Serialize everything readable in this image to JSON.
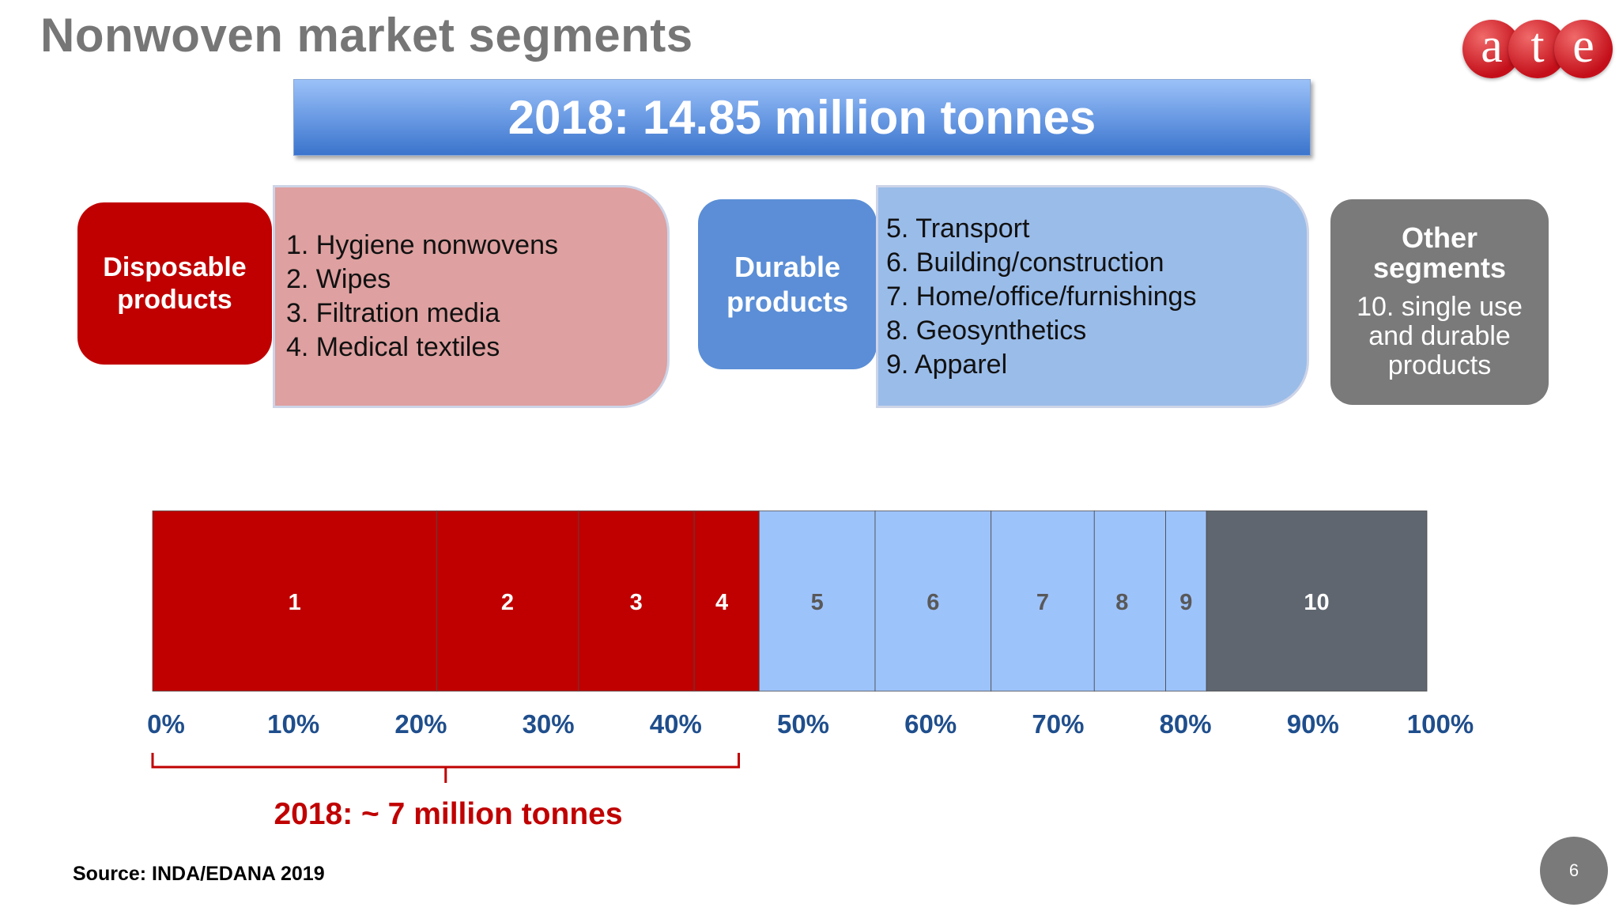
{
  "title": "Nonwoven market segments",
  "banner": "2018: 14.85 million tonnes",
  "logo": {
    "letters": [
      "a",
      "t",
      "e"
    ],
    "color": "#c40f1a"
  },
  "groups": {
    "disposable": {
      "label": "Disposable\nproducts",
      "items": [
        "1. Hygiene nonwovens",
        "2. Wipes",
        "3. Filtration media",
        "4. Medical textiles"
      ]
    },
    "durable": {
      "label": "Durable\nproducts",
      "items": [
        "5. Transport",
        "6. Building/construction",
        "7. Home/office/furnishings",
        "8. Geosynthetics",
        "9. Apparel"
      ]
    },
    "other": {
      "label": "Other\nsegments",
      "description": "10. single use\nand durable\nproducts"
    }
  },
  "chart_data": {
    "type": "bar",
    "orientation": "horizontal-stacked-100",
    "xlim": [
      0,
      100
    ],
    "ticks": [
      "0%",
      "10%",
      "20%",
      "30%",
      "40%",
      "50%",
      "60%",
      "70%",
      "80%",
      "90%",
      "100%"
    ],
    "segments": [
      {
        "label": "1",
        "value": 22.3,
        "color": "#c00000",
        "text_color": "#ffffff"
      },
      {
        "label": "2",
        "value": 11.1,
        "color": "#c00000",
        "text_color": "#ffffff"
      },
      {
        "label": "3",
        "value": 9.1,
        "color": "#c00000",
        "text_color": "#ffffff"
      },
      {
        "label": "4",
        "value": 5.1,
        "color": "#c00000",
        "text_color": "#ffffff"
      },
      {
        "label": "5",
        "value": 9.1,
        "color": "#9dc3fb",
        "text_color": "#595959"
      },
      {
        "label": "6",
        "value": 9.1,
        "color": "#9dc3fb",
        "text_color": "#595959"
      },
      {
        "label": "7",
        "value": 8.1,
        "color": "#9dc3fb",
        "text_color": "#595959"
      },
      {
        "label": "8",
        "value": 5.6,
        "color": "#9dc3fb",
        "text_color": "#595959"
      },
      {
        "label": "9",
        "value": 3.2,
        "color": "#9dc3fb",
        "text_color": "#595959"
      },
      {
        "label": "10",
        "value": 17.3,
        "color": "#5f6670",
        "text_color": "#ffffff"
      }
    ],
    "tick_color": "#1f4e8c",
    "bracket": {
      "from": 0,
      "to": 46,
      "label": "2018: ~ 7 million tonnes",
      "color": "#c00000"
    }
  },
  "source": "Source: INDA/EDANA 2019",
  "page_number": "6"
}
